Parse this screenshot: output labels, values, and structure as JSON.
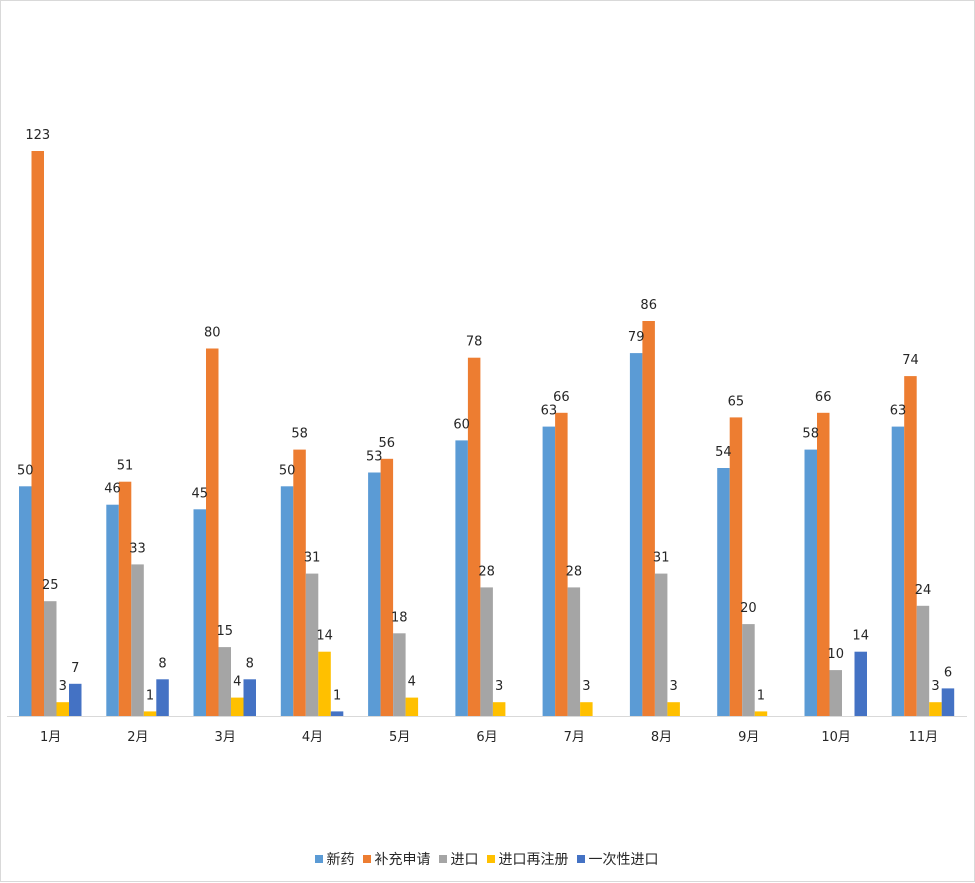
{
  "chart_data": {
    "type": "bar",
    "title": "",
    "xlabel": "",
    "ylabel": "",
    "ylim": [
      0,
      123
    ],
    "grid": false,
    "legend_position": "bottom",
    "categories": [
      "1月",
      "2月",
      "3月",
      "4月",
      "5月",
      "6月",
      "7月",
      "8月",
      "9月",
      "10月",
      "11月"
    ],
    "series": [
      {
        "name": "新药",
        "color": "#5B9BD5",
        "values": [
          50,
          46,
          45,
          50,
          53,
          60,
          63,
          79,
          54,
          58,
          63
        ]
      },
      {
        "name": "补充申请",
        "color": "#ED7D31",
        "values": [
          123,
          51,
          80,
          58,
          56,
          78,
          66,
          86,
          65,
          66,
          74
        ]
      },
      {
        "name": "进口",
        "color": "#A5A5A5",
        "values": [
          25,
          33,
          15,
          31,
          18,
          28,
          28,
          31,
          20,
          10,
          24
        ]
      },
      {
        "name": "进口再注册",
        "color": "#FFC000",
        "values": [
          3,
          1,
          4,
          14,
          4,
          3,
          3,
          3,
          1,
          null,
          3
        ]
      },
      {
        "name": "一次性进口",
        "color": "#4472C4",
        "values": [
          7,
          8,
          8,
          1,
          null,
          null,
          null,
          null,
          null,
          14,
          6
        ]
      }
    ]
  }
}
